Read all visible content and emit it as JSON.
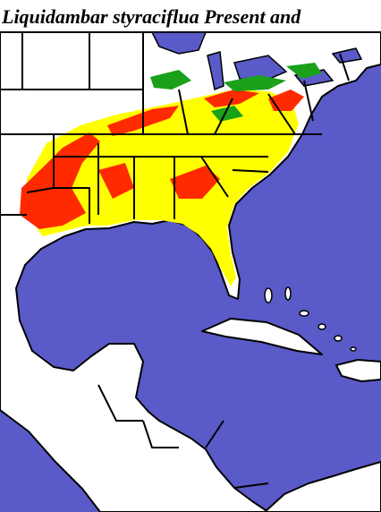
{
  "title": "Liquidambar styraciflua Present and"
}
